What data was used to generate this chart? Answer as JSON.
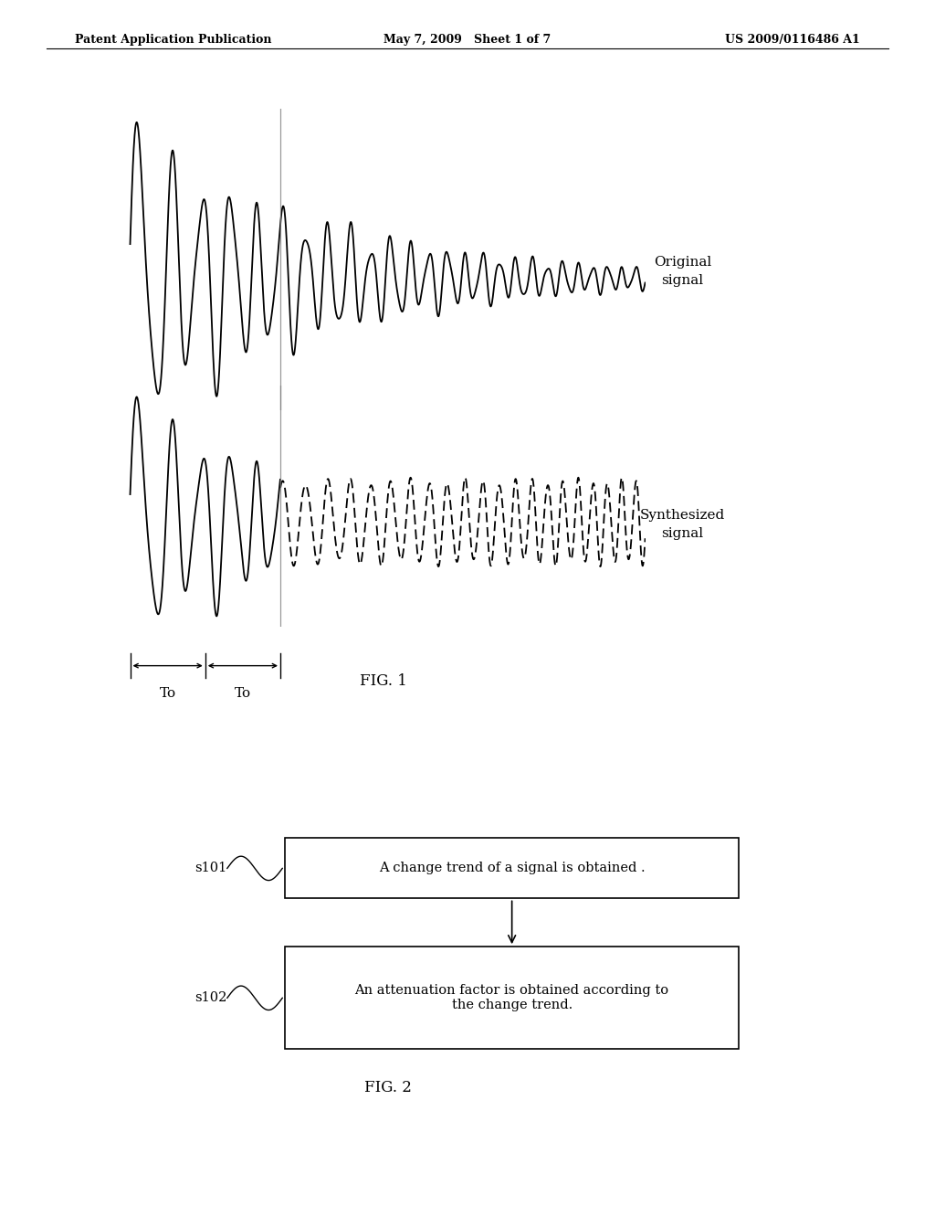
{
  "header_left": "Patent Application Publication",
  "header_center": "May 7, 2009   Sheet 1 of 7",
  "header_right": "US 2009/0116486 A1",
  "fig1_label": "FIG. 1",
  "fig2_label": "FIG. 2",
  "original_signal_label": "Original\nsignal",
  "synthesized_signal_label": "Synthesized\nsignal",
  "step1_id": "s101",
  "step1_text": "A change trend of a signal is obtained .",
  "step2_id": "s102",
  "step2_text": "An attenuation factor is obtained according to\nthe change trend.",
  "background_color": "#ffffff",
  "text_color": "#000000"
}
